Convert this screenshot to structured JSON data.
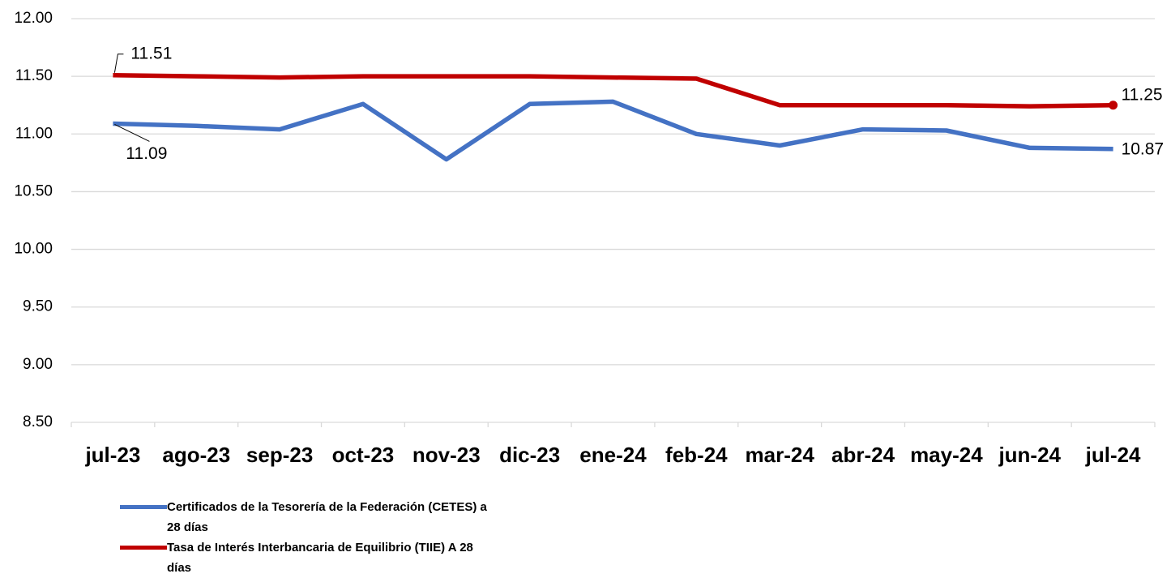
{
  "chart_data": {
    "type": "line",
    "categories": [
      "jul-23",
      "ago-23",
      "sep-23",
      "oct-23",
      "nov-23",
      "dic-23",
      "ene-24",
      "feb-24",
      "mar-24",
      "abr-24",
      "may-24",
      "jun-24",
      "jul-24"
    ],
    "series": [
      {
        "name": "Certificados de la Tesorería de la Federación (CETES) a 28 días",
        "color": "#4472c4",
        "values": [
          11.09,
          11.07,
          11.04,
          11.26,
          10.78,
          11.26,
          11.28,
          11.0,
          10.9,
          11.04,
          11.03,
          10.88,
          10.87
        ]
      },
      {
        "name": "Tasa de Interés Interbancaria de Equilibrio (TIIE) A 28 días",
        "color": "#c00000",
        "values": [
          11.51,
          11.5,
          11.49,
          11.5,
          11.5,
          11.5,
          11.49,
          11.48,
          11.25,
          11.25,
          11.25,
          11.24,
          11.25
        ]
      }
    ],
    "ylim": [
      8.5,
      12
    ],
    "yticks": [
      {
        "value": 8.5,
        "label": "8.50"
      },
      {
        "value": 9,
        "label": "9.00"
      },
      {
        "value": 9.5,
        "label": "9.50"
      },
      {
        "value": 10,
        "label": "10.00"
      },
      {
        "value": 10.5,
        "label": "10.50"
      },
      {
        "value": 11,
        "label": "11.00"
      },
      {
        "value": 11.5,
        "label": "11.50"
      },
      {
        "value": 12,
        "label": "12.00"
      }
    ],
    "grid": true
  }
}
